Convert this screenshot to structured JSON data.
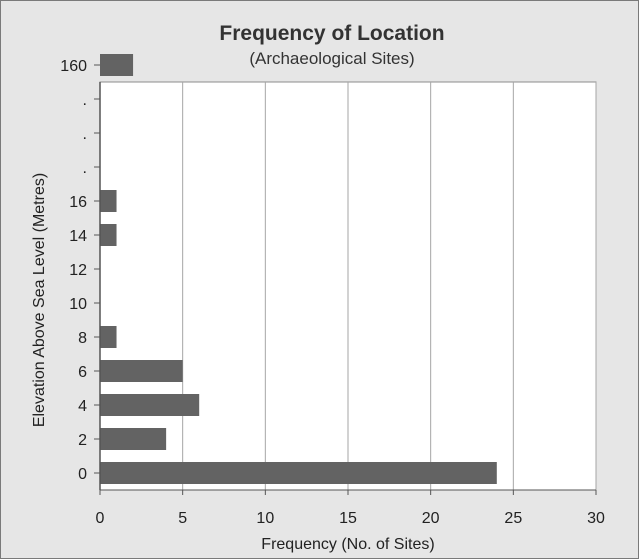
{
  "chart_data": {
    "type": "bar",
    "orientation": "horizontal",
    "title": "Frequency of Location",
    "subtitle": "(Archaeological Sites)",
    "xlabel": "Frequency (No. of Sites)",
    "ylabel": "Elevation Above Sea Level (Metres)",
    "xlim": [
      0,
      30
    ],
    "xticks": [
      "0",
      "5",
      "10",
      "15",
      "20",
      "25",
      "30"
    ],
    "categories": [
      "0",
      "2",
      "4",
      "6",
      "8",
      "10",
      "12",
      "14",
      "16",
      ".",
      ".",
      ".",
      "160"
    ],
    "values": [
      24,
      4,
      6,
      5,
      1,
      0,
      0,
      1,
      1,
      null,
      null,
      null,
      2
    ],
    "grid": "vertical",
    "legend": "none",
    "colors": {
      "bar": "#636363",
      "frame_background": "#e6e6e6",
      "plot_background": "#ffffff",
      "gridline": "#a6a6a6",
      "frame_border": "#7a7a7a"
    }
  }
}
